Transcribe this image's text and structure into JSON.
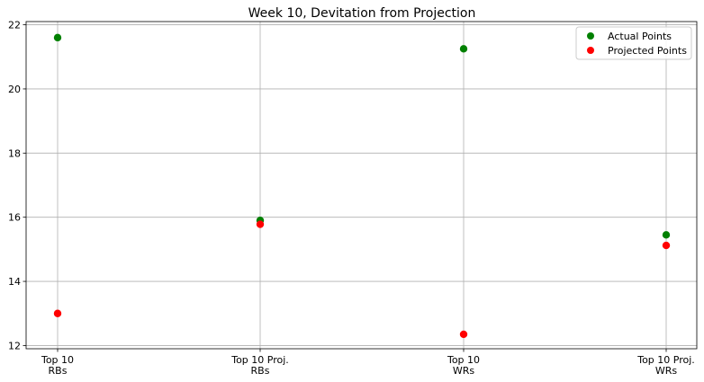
{
  "chart_data": {
    "type": "scatter",
    "title": "Week 10, Devitation from Projection",
    "xlabel": "",
    "ylabel": "",
    "categories": [
      [
        "Top 10",
        "RBs"
      ],
      [
        "Top 10 Proj.",
        "RBs"
      ],
      [
        "Top 10",
        "WRs"
      ],
      [
        "Top 10 Proj.",
        "WRs"
      ]
    ],
    "ylim": [
      11.9,
      22.1
    ],
    "yticks": [
      12,
      14,
      16,
      18,
      20,
      22
    ],
    "grid": true,
    "legend_position": "top-right",
    "series": [
      {
        "name": "Actual Points",
        "color": "#008000",
        "values": [
          21.6,
          15.9,
          21.25,
          15.45
        ]
      },
      {
        "name": "Projected Points",
        "color": "#ff0000",
        "values": [
          13.0,
          15.78,
          12.35,
          15.12
        ]
      }
    ]
  }
}
